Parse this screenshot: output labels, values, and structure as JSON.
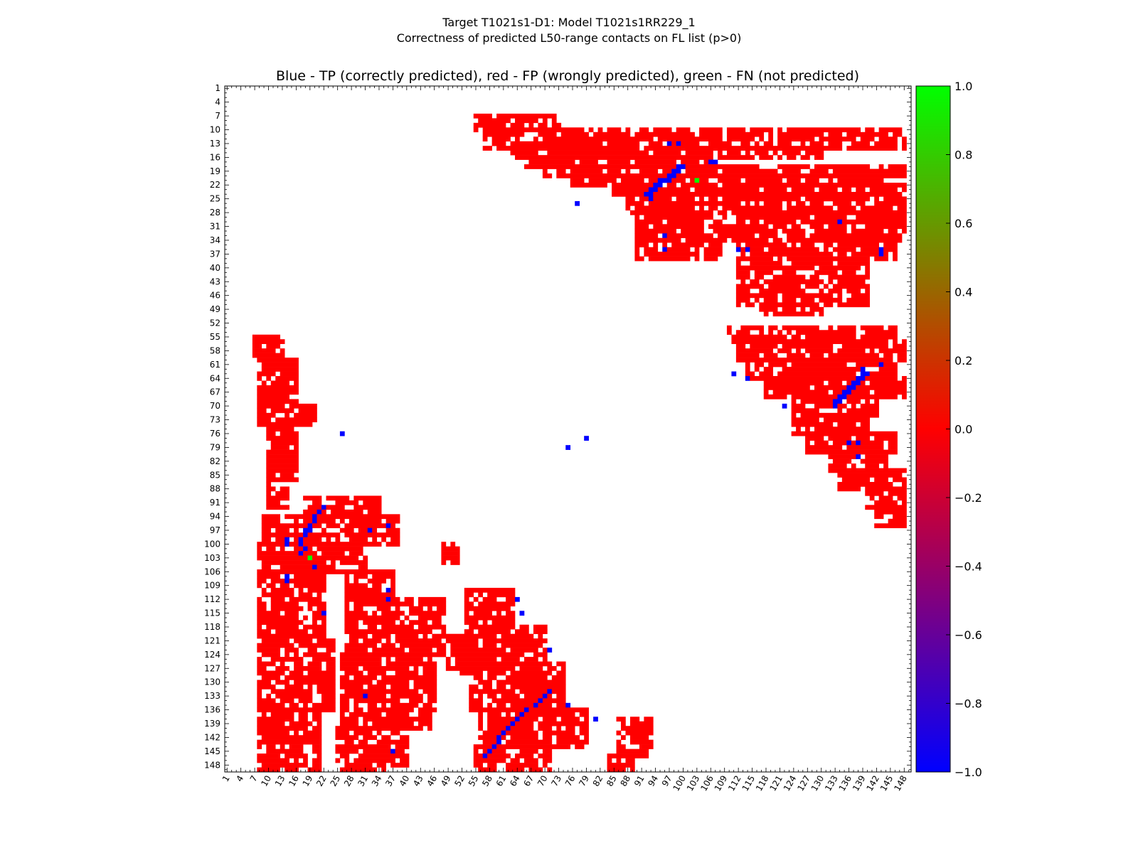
{
  "figure": {
    "suptitle_line1": "Target T1021s1-D1: Model T1021s1RR229_1",
    "suptitle_line2": "Correctness of predicted L50-range contacts on FL list (p>0)",
    "axes_title": "Blue - TP (correctly predicted), red - FP (wrongly predicted), green - FN (not predicted)"
  },
  "chart_data": {
    "type": "heatmap",
    "title": "Blue - TP (correctly predicted), red - FP (wrongly predicted), green - FN (not predicted)",
    "xlabel": "",
    "ylabel": "",
    "grid": false,
    "n_residues": 149,
    "x_ticks": [
      1,
      4,
      7,
      10,
      13,
      16,
      19,
      22,
      25,
      28,
      31,
      34,
      37,
      40,
      43,
      46,
      49,
      52,
      55,
      58,
      61,
      64,
      67,
      70,
      73,
      76,
      79,
      82,
      85,
      88,
      91,
      94,
      97,
      100,
      103,
      106,
      109,
      112,
      115,
      118,
      121,
      124,
      127,
      130,
      133,
      136,
      139,
      142,
      145,
      148
    ],
    "y_ticks": [
      1,
      4,
      7,
      10,
      13,
      16,
      19,
      22,
      25,
      28,
      31,
      34,
      37,
      40,
      43,
      46,
      49,
      52,
      55,
      58,
      61,
      64,
      67,
      70,
      73,
      76,
      79,
      82,
      85,
      88,
      91,
      94,
      97,
      100,
      103,
      106,
      109,
      112,
      115,
      118,
      121,
      124,
      127,
      130,
      133,
      136,
      139,
      142,
      145,
      148
    ],
    "x_range": [
      1,
      149
    ],
    "y_range": [
      1,
      149
    ],
    "y_inverted": true,
    "color_value_range": [
      -1.0,
      1.0
    ],
    "colorbar": {
      "ticks": [
        "1.0",
        "0.8",
        "0.6",
        "0.4",
        "0.2",
        "0.0",
        "−0.2",
        "−0.4",
        "−0.6",
        "−0.8",
        "−1.0"
      ],
      "colors": [
        "#0000ff",
        "#ff0000",
        "#00ff00"
      ]
    },
    "legend_colors": {
      "TP": "#0000ff",
      "FP": "#ff0000",
      "FN": "#00ff00"
    },
    "regions_fp_upper": [
      [
        7,
        10,
        55,
        73
      ],
      [
        10,
        14,
        57,
        148
      ],
      [
        14,
        16,
        63,
        130
      ],
      [
        16,
        18,
        66,
        106
      ],
      [
        18,
        20,
        70,
        148
      ],
      [
        20,
        22,
        76,
        146
      ],
      [
        22,
        24,
        85,
        148
      ],
      [
        24,
        28,
        88,
        148
      ],
      [
        28,
        34,
        90,
        108
      ],
      [
        28,
        34,
        108,
        148
      ],
      [
        34,
        38,
        90,
        108
      ],
      [
        34,
        38,
        112,
        146
      ],
      [
        38,
        48,
        112,
        140
      ],
      [
        48,
        50,
        117,
        130
      ],
      [
        53,
        56,
        110,
        146
      ],
      [
        56,
        60,
        112,
        148
      ],
      [
        60,
        64,
        114,
        146
      ],
      [
        64,
        68,
        118,
        148
      ],
      [
        68,
        72,
        124,
        142
      ],
      [
        72,
        76,
        124,
        140
      ],
      [
        76,
        80,
        127,
        146
      ],
      [
        80,
        84,
        132,
        144
      ],
      [
        84,
        88,
        134,
        148
      ],
      [
        88,
        92,
        140,
        148
      ],
      [
        92,
        96,
        142,
        148
      ]
    ],
    "regions_fp_lower": [
      [
        55,
        60,
        7,
        13
      ],
      [
        60,
        70,
        8,
        16
      ],
      [
        70,
        74,
        8,
        20
      ],
      [
        74,
        86,
        10,
        16
      ],
      [
        86,
        92,
        10,
        14
      ],
      [
        90,
        94,
        18,
        34
      ],
      [
        94,
        100,
        9,
        38
      ],
      [
        100,
        106,
        8,
        31
      ],
      [
        106,
        120,
        8,
        22
      ],
      [
        120,
        136,
        8,
        24
      ],
      [
        136,
        149,
        8,
        21
      ],
      [
        106,
        112,
        27,
        37
      ],
      [
        112,
        124,
        27,
        48
      ],
      [
        124,
        140,
        26,
        46
      ],
      [
        140,
        149,
        25,
        40
      ],
      [
        110,
        118,
        53,
        63
      ],
      [
        118,
        126,
        53,
        70
      ],
      [
        126,
        136,
        54,
        74
      ],
      [
        136,
        144,
        56,
        79
      ],
      [
        144,
        149,
        55,
        71
      ],
      [
        138,
        146,
        86,
        93
      ],
      [
        146,
        149,
        84,
        89
      ],
      [
        100,
        104,
        48,
        51
      ],
      [
        120,
        128,
        49,
        55
      ]
    ],
    "tp_points": [
      [
        13,
        97
      ],
      [
        13,
        99
      ],
      [
        17,
        106
      ],
      [
        17,
        107
      ],
      [
        18,
        99
      ],
      [
        18,
        100
      ],
      [
        19,
        98
      ],
      [
        19,
        99
      ],
      [
        20,
        97
      ],
      [
        20,
        98
      ],
      [
        21,
        95
      ],
      [
        21,
        96
      ],
      [
        21,
        97
      ],
      [
        22,
        94
      ],
      [
        22,
        95
      ],
      [
        23,
        93
      ],
      [
        23,
        94
      ],
      [
        24,
        92
      ],
      [
        24,
        93
      ],
      [
        25,
        93
      ],
      [
        26,
        77
      ],
      [
        30,
        134
      ],
      [
        33,
        96
      ],
      [
        36,
        96
      ],
      [
        36,
        112
      ],
      [
        36,
        114
      ],
      [
        36,
        143
      ],
      [
        37,
        143
      ],
      [
        62,
        139
      ],
      [
        63,
        139
      ],
      [
        63,
        140
      ],
      [
        64,
        138
      ],
      [
        64,
        139
      ],
      [
        65,
        137
      ],
      [
        65,
        138
      ],
      [
        66,
        136
      ],
      [
        66,
        137
      ],
      [
        67,
        135
      ],
      [
        67,
        136
      ],
      [
        68,
        134
      ],
      [
        68,
        135
      ],
      [
        69,
        133
      ],
      [
        69,
        134
      ],
      [
        70,
        122
      ],
      [
        70,
        133
      ],
      [
        78,
        136
      ],
      [
        78,
        138
      ],
      [
        81,
        138
      ],
      [
        61,
        143
      ],
      [
        63,
        111
      ],
      [
        64,
        114
      ],
      [
        92,
        22
      ],
      [
        93,
        21
      ],
      [
        94,
        20
      ],
      [
        95,
        20
      ],
      [
        96,
        19
      ],
      [
        97,
        19
      ],
      [
        97,
        18
      ],
      [
        98,
        18
      ],
      [
        99,
        17
      ],
      [
        100,
        17
      ],
      [
        99,
        14
      ],
      [
        100,
        14
      ],
      [
        101,
        18
      ],
      [
        102,
        17
      ],
      [
        105,
        20
      ],
      [
        107,
        14
      ],
      [
        108,
        14
      ],
      [
        110,
        36
      ],
      [
        112,
        36
      ],
      [
        115,
        22
      ],
      [
        76,
        26
      ],
      [
        97,
        32
      ],
      [
        96,
        36
      ],
      [
        133,
        31
      ],
      [
        137,
        65
      ],
      [
        136,
        66
      ],
      [
        135,
        68
      ],
      [
        134,
        69
      ],
      [
        133,
        70
      ],
      [
        132,
        71
      ],
      [
        138,
        64
      ],
      [
        139,
        63
      ],
      [
        140,
        62
      ],
      [
        141,
        61
      ],
      [
        142,
        60
      ],
      [
        143,
        60
      ],
      [
        144,
        59
      ],
      [
        145,
        58
      ],
      [
        146,
        57
      ],
      [
        145,
        37
      ],
      [
        112,
        64
      ],
      [
        115,
        65
      ],
      [
        123,
        71
      ],
      [
        77,
        79
      ],
      [
        79,
        75
      ],
      [
        135,
        75
      ],
      [
        138,
        81
      ]
    ],
    "fn_points": [
      [
        21,
        103
      ],
      [
        103,
        19
      ]
    ]
  }
}
